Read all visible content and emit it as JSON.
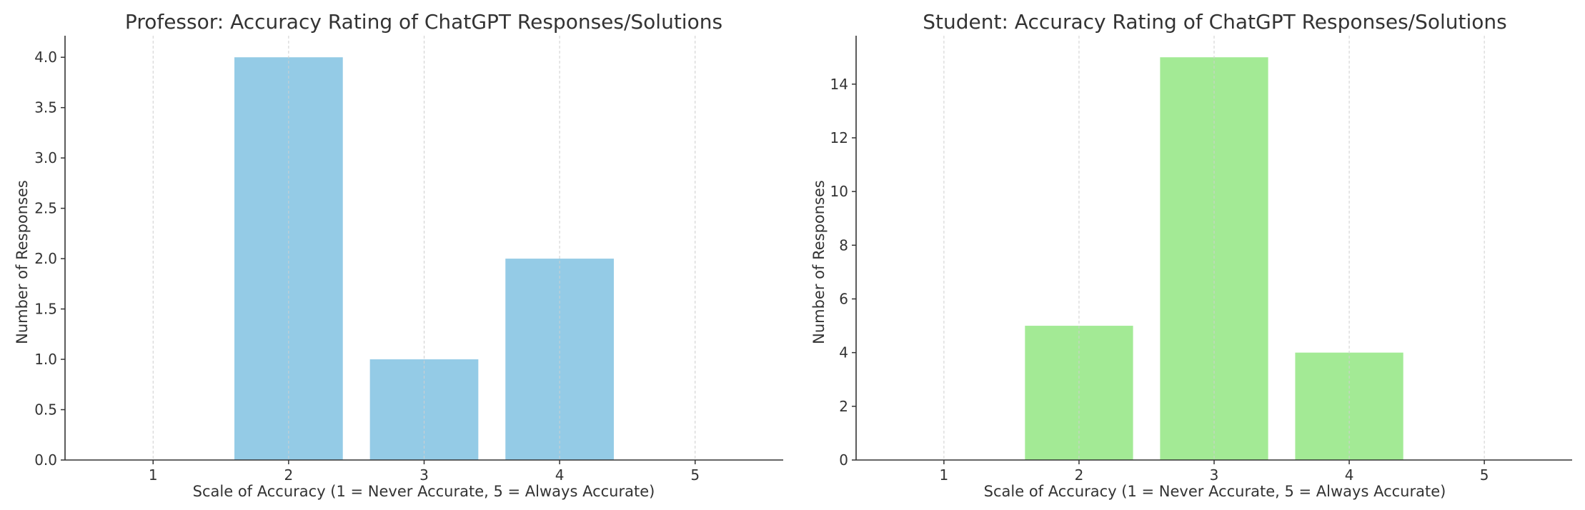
{
  "chart_data": [
    {
      "type": "bar",
      "title": "Professor: Accuracy Rating of ChatGPT Responses/Solutions",
      "xlabel": "Scale of Accuracy (1 = Never Accurate, 5 = Always Accurate)",
      "ylabel": "Number of Responses",
      "categories": [
        "1",
        "2",
        "3",
        "4",
        "5"
      ],
      "values": [
        0,
        4,
        1,
        2,
        0
      ],
      "ylim": [
        0,
        4.2
      ],
      "yticks": [
        "0.0",
        "0.5",
        "1.0",
        "1.5",
        "2.0",
        "2.5",
        "3.0",
        "3.5",
        "4.0"
      ],
      "bar_color": "#94cbe6",
      "grid": "vertical dashed",
      "legend": "none"
    },
    {
      "type": "bar",
      "title": "Student: Accuracy Rating of ChatGPT Responses/Solutions",
      "xlabel": "Scale of Accuracy (1 = Never Accurate, 5 = Always Accurate)",
      "ylabel": "Number of Responses",
      "categories": [
        "1",
        "2",
        "3",
        "4",
        "5"
      ],
      "values": [
        0,
        5,
        15,
        4,
        0
      ],
      "ylim": [
        0,
        15.75
      ],
      "yticks": [
        "0",
        "2",
        "4",
        "6",
        "8",
        "10",
        "12",
        "14"
      ],
      "bar_color": "#a3ea95",
      "grid": "vertical dashed",
      "legend": "none"
    }
  ]
}
